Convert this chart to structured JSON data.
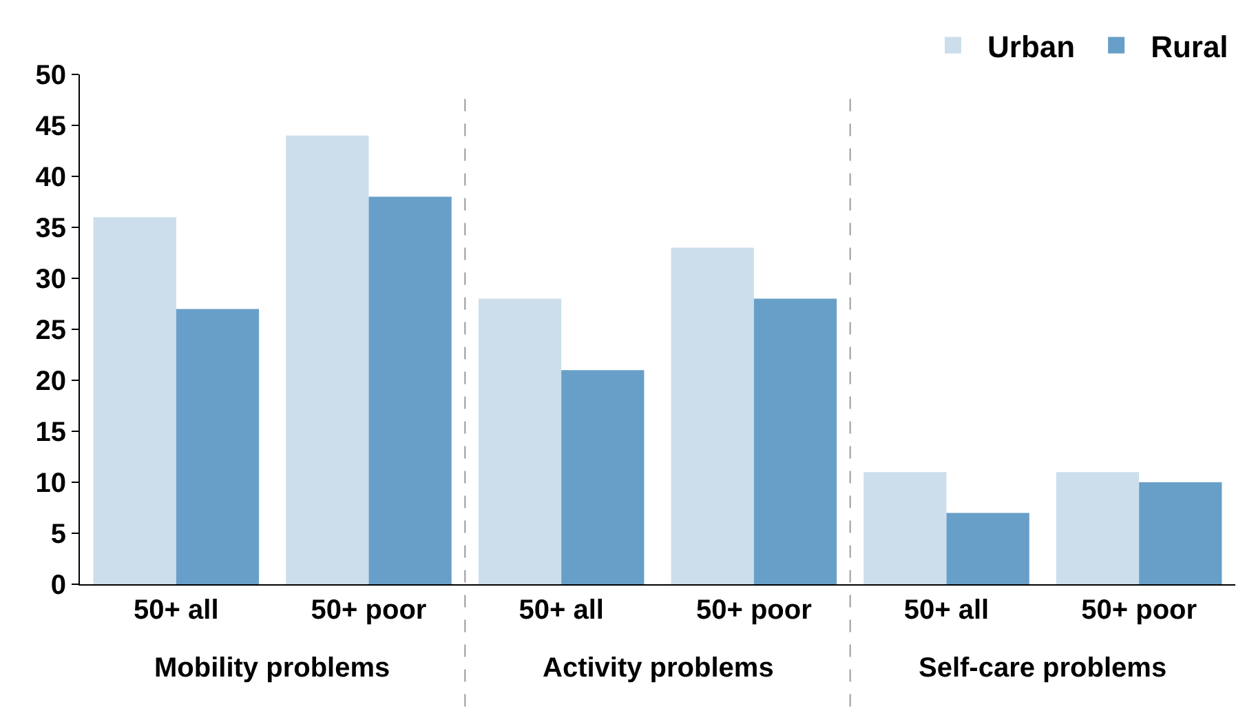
{
  "chart_data": {
    "type": "bar",
    "categories": [
      "50+ all",
      "50+ poor",
      "50+ all",
      "50+ poor",
      "50+ all",
      "50+ poor"
    ],
    "series": [
      {
        "name": "Urban",
        "color": "#ccdeec",
        "values": [
          36,
          44,
          28,
          33,
          11,
          11
        ]
      },
      {
        "name": "Rural",
        "color": "#689fc8",
        "values": [
          27,
          38,
          21,
          28,
          7,
          10
        ]
      }
    ],
    "annotations": [
      "Mobility problems",
      "Activity problems",
      "Self-care problems"
    ],
    "ylim": [
      0,
      50
    ],
    "yticks": [
      0,
      5,
      10,
      15,
      20,
      25,
      30,
      35,
      40,
      45,
      50
    ],
    "legend": "top right"
  }
}
